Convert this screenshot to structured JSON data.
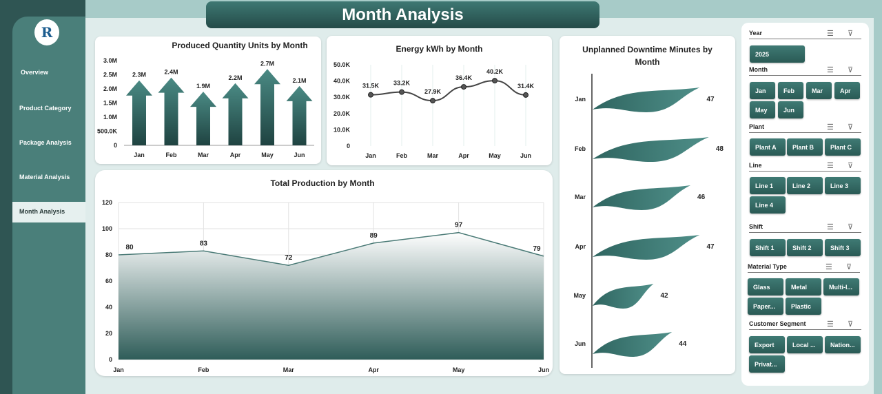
{
  "title": "Month Analysis",
  "nav": [
    {
      "label": "Overview"
    },
    {
      "label": "Product Category"
    },
    {
      "label": "Package Analysis"
    },
    {
      "label": "Material Analysis"
    },
    {
      "label": "Month Analysis",
      "active": true
    }
  ],
  "colors": {
    "primary": "#3e7873",
    "dark": "#244b48",
    "sidebar": "#4a7f7a"
  },
  "chart_data": [
    {
      "type": "bar",
      "title": "Produced Quantity Units by Month",
      "categories": [
        "Jan",
        "Feb",
        "Mar",
        "Apr",
        "May",
        "Jun"
      ],
      "values": [
        2300000,
        2400000,
        1900000,
        2200000,
        2700000,
        2100000
      ],
      "data_labels": [
        "2.3M",
        "2.4M",
        "1.9M",
        "2.2M",
        "2.7M",
        "2.1M"
      ],
      "yticks": [
        "0",
        "500.0K",
        "1.0M",
        "1.5M",
        "2.0M",
        "2.5M",
        "3.0M"
      ],
      "ylim": [
        0,
        3000000
      ],
      "marker": "arrow"
    },
    {
      "type": "line",
      "title": "Energy kWh by Month",
      "categories": [
        "Jan",
        "Feb",
        "Mar",
        "Apr",
        "May",
        "Jun"
      ],
      "values": [
        31500,
        33200,
        27900,
        36400,
        40200,
        31400
      ],
      "data_labels": [
        "31.5K",
        "33.2K",
        "27.9K",
        "36.4K",
        "40.2K",
        "31.4K"
      ],
      "yticks": [
        "0",
        "10.0K",
        "20.0K",
        "30.0K",
        "40.0K",
        "50.0K"
      ],
      "ylim": [
        0,
        50000
      ]
    },
    {
      "type": "area",
      "title": "Total Production by Month",
      "categories": [
        "Jan",
        "Feb",
        "Mar",
        "Apr",
        "May",
        "Jun"
      ],
      "values": [
        80,
        83,
        72,
        89,
        97,
        79
      ],
      "yticks": [
        "0",
        "20",
        "40",
        "60",
        "80",
        "100",
        "120"
      ],
      "ylim": [
        0,
        120
      ],
      "grid": true
    },
    {
      "type": "bar",
      "orientation": "horizontal",
      "title": "Unplanned Downtime Minutes by Month",
      "categories": [
        "Jan",
        "Feb",
        "Mar",
        "Apr",
        "May",
        "Jun"
      ],
      "values": [
        47,
        48,
        46,
        47,
        42,
        44
      ],
      "marker": "flag"
    }
  ],
  "slicers": [
    {
      "label": "Year",
      "items": [
        "2025"
      ]
    },
    {
      "label": "Month",
      "items": [
        "Jan",
        "Feb",
        "Mar",
        "Apr",
        "May",
        "Jun"
      ]
    },
    {
      "label": "Plant",
      "items": [
        "Plant A",
        "Plant B",
        "Plant C"
      ]
    },
    {
      "label": "Line",
      "items": [
        "Line 1",
        "Line 2",
        "Line 3",
        "Line 4"
      ]
    },
    {
      "label": "Shift",
      "items": [
        "Shift 1",
        "Shift 2",
        "Shift 3"
      ]
    },
    {
      "label": "Material Type",
      "items": [
        "Glass",
        "Metal",
        "Multi-l...",
        "Paper...",
        "Plastic"
      ]
    },
    {
      "label": "Customer Segment",
      "items": [
        "Export",
        "Local ...",
        "Nation...",
        "Privat..."
      ]
    }
  ]
}
